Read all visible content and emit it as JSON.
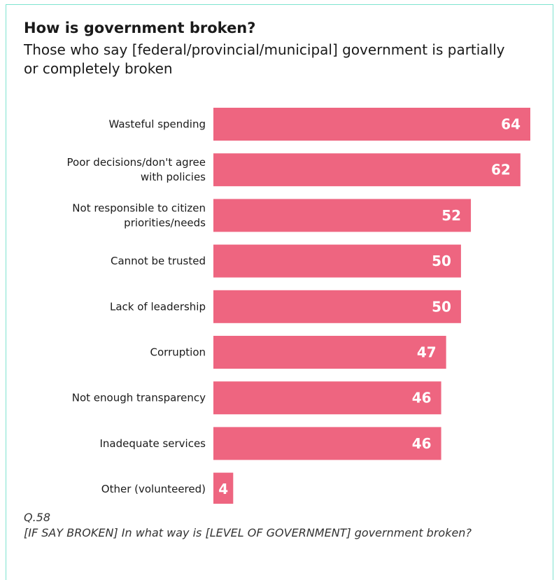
{
  "title": "How is government broken?",
  "subtitle": "Those who say [federal/provincial/municipal] government is partially or completely broken",
  "footnote": {
    "question_id": "Q.58",
    "question_text": "[IF SAY BROKEN] In what way is [LEVEL OF GOVERNMENT] government broken?"
  },
  "colors": {
    "bar": "#ee6580",
    "bar_label": "#ffffff",
    "category_label": "#1a1a1a",
    "border": "#7fe3cf"
  },
  "chart_data": {
    "type": "bar",
    "orientation": "horizontal",
    "categories": [
      [
        "Wasteful spending"
      ],
      [
        "Poor decisions/don't agree",
        "with policies"
      ],
      [
        "Not responsible to citizen",
        "priorities/needs"
      ],
      [
        "Cannot be trusted"
      ],
      [
        "Lack of leadership"
      ],
      [
        "Corruption"
      ],
      [
        "Not enough transparency"
      ],
      [
        "Inadequate services"
      ],
      [
        "Other (volunteered)"
      ]
    ],
    "values": [
      64,
      62,
      52,
      50,
      50,
      47,
      46,
      46,
      4
    ],
    "xlim": [
      0,
      64
    ],
    "grid": false,
    "legend": "none",
    "data_labels": "inside-end"
  }
}
